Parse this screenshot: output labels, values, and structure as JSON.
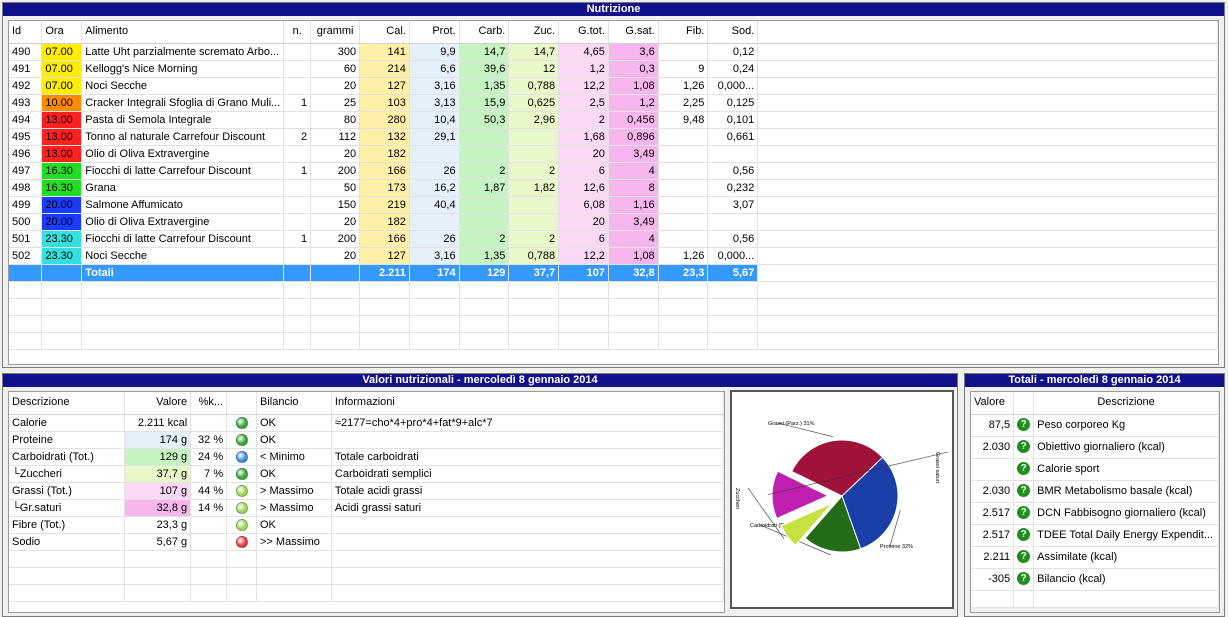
{
  "nutrizione": {
    "title": "Nutrizione",
    "headers": [
      "Id",
      "Ora",
      "Alimento",
      "n.",
      "grammi",
      "Cal.",
      "Prot.",
      "Carb.",
      "Zuc.",
      "G.tot.",
      "G.sat.",
      "Fib.",
      "Sod."
    ],
    "rows": [
      {
        "id": "490",
        "ora": "07.00",
        "ora_color": "#ffee00",
        "alimento": "Latte Uht parzialmente scremato Arbo...",
        "n": "",
        "grammi": "300",
        "cal": "141",
        "prot": "9,9",
        "carb": "14,7",
        "zuc": "14,7",
        "gtot": "4,65",
        "gsat": "3,6",
        "fib": "",
        "sod": "0,12"
      },
      {
        "id": "491",
        "ora": "07.00",
        "ora_color": "#ffee00",
        "alimento": "Kellogg's Nice Morning",
        "n": "",
        "grammi": "60",
        "cal": "214",
        "prot": "6,6",
        "carb": "39,6",
        "zuc": "12",
        "gtot": "1,2",
        "gsat": "0,3",
        "fib": "9",
        "sod": "0,24"
      },
      {
        "id": "492",
        "ora": "07.00",
        "ora_color": "#ffee00",
        "alimento": "Noci Secche",
        "n": "",
        "grammi": "20",
        "cal": "127",
        "prot": "3,16",
        "carb": "1,35",
        "zuc": "0,788",
        "gtot": "12,2",
        "gsat": "1,08",
        "fib": "1,26",
        "sod": "0,000..."
      },
      {
        "id": "493",
        "ora": "10.00",
        "ora_color": "#ff8c00",
        "alimento": "Cracker Integrali Sfoglia di Grano Muli...",
        "n": "1",
        "grammi": "25",
        "cal": "103",
        "prot": "3,13",
        "carb": "15,9",
        "zuc": "0,625",
        "gtot": "2,5",
        "gsat": "1,2",
        "fib": "2,25",
        "sod": "0,125"
      },
      {
        "id": "494",
        "ora": "13.00",
        "ora_color": "#ff2020",
        "alimento": "Pasta di Semola Integrale",
        "n": "",
        "grammi": "80",
        "cal": "280",
        "prot": "10,4",
        "carb": "50,3",
        "zuc": "2,96",
        "gtot": "2",
        "gsat": "0,456",
        "fib": "9,48",
        "sod": "0,101"
      },
      {
        "id": "495",
        "ora": "13.00",
        "ora_color": "#ff2020",
        "alimento": "Tonno al naturale Carrefour Discount",
        "n": "2",
        "grammi": "112",
        "cal": "132",
        "prot": "29,1",
        "carb": "",
        "zuc": "",
        "gtot": "1,68",
        "gsat": "0,896",
        "fib": "",
        "sod": "0,661"
      },
      {
        "id": "496",
        "ora": "13.00",
        "ora_color": "#ff2020",
        "alimento": "Olio di Oliva Extravergine",
        "n": "",
        "grammi": "20",
        "cal": "182",
        "prot": "",
        "carb": "",
        "zuc": "",
        "gtot": "20",
        "gsat": "3,49",
        "fib": "",
        "sod": ""
      },
      {
        "id": "497",
        "ora": "16.30",
        "ora_color": "#22dd22",
        "alimento": "Fiocchi di latte Carrefour Discount",
        "n": "1",
        "grammi": "200",
        "cal": "166",
        "prot": "26",
        "carb": "2",
        "zuc": "2",
        "gtot": "6",
        "gsat": "4",
        "fib": "",
        "sod": "0,56"
      },
      {
        "id": "498",
        "ora": "16.30",
        "ora_color": "#22dd22",
        "alimento": "Grana",
        "n": "",
        "grammi": "50",
        "cal": "173",
        "prot": "16,2",
        "carb": "1,87",
        "zuc": "1,82",
        "gtot": "12,6",
        "gsat": "8",
        "fib": "",
        "sod": "0,232"
      },
      {
        "id": "499",
        "ora": "20.00",
        "ora_color": "#1a3cff",
        "alimento": "Salmone Affumicato",
        "n": "",
        "grammi": "150",
        "cal": "219",
        "prot": "40,4",
        "carb": "",
        "zuc": "",
        "gtot": "6,08",
        "gsat": "1,16",
        "fib": "",
        "sod": "3,07"
      },
      {
        "id": "500",
        "ora": "20.00",
        "ora_color": "#1a3cff",
        "alimento": "Olio di Oliva Extravergine",
        "n": "",
        "grammi": "20",
        "cal": "182",
        "prot": "",
        "carb": "",
        "zuc": "",
        "gtot": "20",
        "gsat": "3,49",
        "fib": "",
        "sod": ""
      },
      {
        "id": "501",
        "ora": "23.30",
        "ora_color": "#33e0e0",
        "alimento": "Fiocchi di latte Carrefour Discount",
        "n": "1",
        "grammi": "200",
        "cal": "166",
        "prot": "26",
        "carb": "2",
        "zuc": "2",
        "gtot": "6",
        "gsat": "4",
        "fib": "",
        "sod": "0,56"
      },
      {
        "id": "502",
        "ora": "23.30",
        "ora_color": "#33e0e0",
        "alimento": "Noci Secche",
        "n": "",
        "grammi": "20",
        "cal": "127",
        "prot": "3,16",
        "carb": "1,35",
        "zuc": "0,788",
        "gtot": "12,2",
        "gsat": "1,08",
        "fib": "1,26",
        "sod": "0,000..."
      }
    ],
    "totals": {
      "label": "Totali",
      "cal": "2.211",
      "prot": "174",
      "carb": "129",
      "zuc": "37,7",
      "gtot": "107",
      "gsat": "32,8",
      "fib": "23,3",
      "sod": "5,67"
    }
  },
  "valori": {
    "title": "Valori nutrizionali - mercoledì 8 gennaio 2014",
    "headers": [
      "Descrizione",
      "Valore",
      "%k...",
      "",
      "Bilancio",
      "Informazioni"
    ],
    "rows": [
      {
        "descr": "Calorie",
        "valore": "2.211 kcal",
        "pct": "",
        "dot": "#3aa83a",
        "bilancio": "OK",
        "info": "≈2177=cho*4+pro*4+fat*9+alc*7",
        "bg": ""
      },
      {
        "descr": "Proteine",
        "valore": "174 g",
        "pct": "32 %",
        "dot": "#3aa83a",
        "bilancio": "OK",
        "info": "",
        "bg": "#e6f0fb"
      },
      {
        "descr": "Carboidrati (Tot.)",
        "valore": "129 g",
        "pct": "24 %",
        "dot": "#3f8fe0",
        "bilancio": "< Minimo",
        "info": "Totale carboidrati",
        "bg": "#c6f3c2"
      },
      {
        "descr": "└Zuccheri",
        "valore": "37,7 g",
        "pct": "7 %",
        "dot": "#3aa83a",
        "bilancio": "OK",
        "info": "Carboidrati semplici",
        "bg": "#e8f8c8"
      },
      {
        "descr": "Grassi (Tot.)",
        "valore": "107 g",
        "pct": "44 %",
        "dot": "#9fd860",
        "bilancio": "> Massimo",
        "info": "Totale acidi grassi",
        "bg": "#fbd8f4"
      },
      {
        "descr": "└Gr.saturi",
        "valore": "32,8 g",
        "pct": "14 %",
        "dot": "#9fd860",
        "bilancio": "> Massimo",
        "info": "Acidi grassi saturi",
        "bg": "#f7b6ee"
      },
      {
        "descr": "Fibre (Tot.)",
        "valore": "23,3 g",
        "pct": "",
        "dot": "#9fd860",
        "bilancio": "OK",
        "info": "",
        "bg": ""
      },
      {
        "descr": "Sodio",
        "valore": "5,67 g",
        "pct": "",
        "dot": "#e04040",
        "bilancio": ">> Massimo",
        "info": "",
        "bg": ""
      }
    ]
  },
  "chart_data": {
    "type": "pie",
    "labels": [
      "Grassi (Parz.) 31%",
      "Proteine 32%",
      "Carboidrati (Parz.) 17%",
      "Zuccheri",
      "Grassi saturi"
    ],
    "values": [
      31,
      32,
      17,
      7,
      14
    ],
    "colors": [
      "#a0123a",
      "#1a3fa8",
      "#246b1a",
      "#c8e040",
      "#c020b0"
    ]
  },
  "totali": {
    "title": "Totali - mercoledì 8 gennaio 2014",
    "headers": [
      "Valore",
      "",
      "Descrizione"
    ],
    "rows": [
      {
        "valore": "87,5",
        "descr": "Peso corporeo Kg"
      },
      {
        "valore": "2.030",
        "descr": "Obiettivo giornaliero (kcal)"
      },
      {
        "valore": "",
        "descr": "Calorie sport"
      },
      {
        "valore": "2.030",
        "descr": "BMR Metabolismo basale (kcal)"
      },
      {
        "valore": "2.517",
        "descr": "DCN Fabbisogno giornaliero (kcal)"
      },
      {
        "valore": "2.517",
        "descr": "TDEE Total Daily Energy Expendit..."
      },
      {
        "valore": "2.211",
        "descr": "Assimilate (kcal)"
      },
      {
        "valore": "-305",
        "descr": "Bilancio (kcal)"
      }
    ],
    "icon": "question-icon"
  }
}
